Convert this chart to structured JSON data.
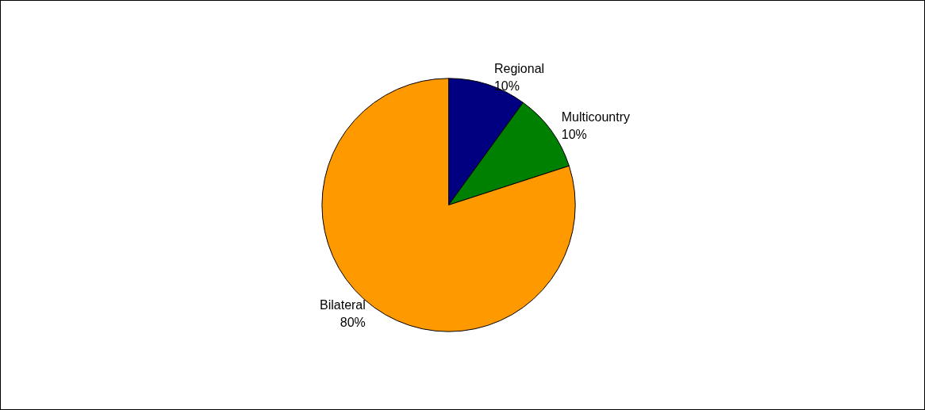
{
  "chart_data": {
    "type": "pie",
    "categories": [
      "Regional",
      "Multicountry",
      "Bilateral"
    ],
    "values": [
      10,
      10,
      80
    ],
    "colors": [
      "#000080",
      "#008000",
      "#ff9900"
    ],
    "value_labels": [
      "10%",
      "10%",
      "80%"
    ],
    "legend": false
  }
}
